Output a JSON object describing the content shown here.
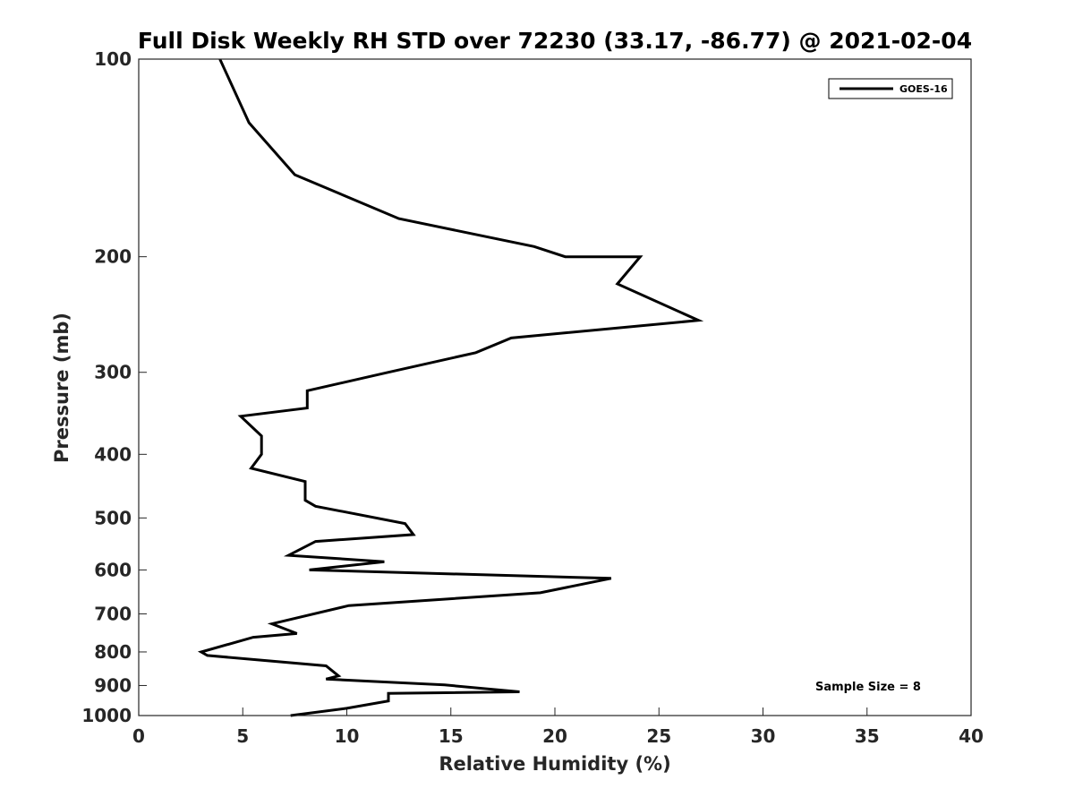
{
  "chart_data": {
    "type": "line",
    "title": "Full Disk Weekly RH STD over 72230 (33.17, -86.77) @ 2021-02-04",
    "xlabel": "Relative Humidity (%)",
    "ylabel": "Pressure (mb)",
    "xlim": [
      0,
      40
    ],
    "ylim": [
      100,
      1000
    ],
    "y_scale": "log",
    "y_reversed": true,
    "xticks": [
      "0",
      "5",
      "10",
      "15",
      "20",
      "25",
      "30",
      "35",
      "40"
    ],
    "xtick_values": [
      0,
      5,
      10,
      15,
      20,
      25,
      30,
      35,
      40
    ],
    "yticks": [
      "100",
      "200",
      "300",
      "400",
      "500",
      "600",
      "700",
      "800",
      "900",
      "1000"
    ],
    "ytick_values": [
      100,
      200,
      300,
      400,
      500,
      600,
      700,
      800,
      900,
      1000
    ],
    "legend": {
      "position": "top-right",
      "entries": [
        "GOES-16"
      ]
    },
    "annotation": "Sample Size = 8",
    "series": [
      {
        "name": "GOES-16",
        "color": "#000000",
        "points": [
          [
            3.9,
            100
          ],
          [
            5.3,
            125
          ],
          [
            7.5,
            150
          ],
          [
            12.5,
            175
          ],
          [
            19.0,
            193
          ],
          [
            20.5,
            200
          ],
          [
            24.1,
            200
          ],
          [
            23.0,
            220
          ],
          [
            26.9,
            250
          ],
          [
            17.9,
            266
          ],
          [
            16.2,
            280
          ],
          [
            12.0,
            300
          ],
          [
            8.1,
            320
          ],
          [
            8.1,
            340
          ],
          [
            4.9,
            350
          ],
          [
            5.9,
            375
          ],
          [
            5.9,
            400
          ],
          [
            5.4,
            420
          ],
          [
            8.0,
            440
          ],
          [
            8.0,
            470
          ],
          [
            8.5,
            480
          ],
          [
            12.8,
            510
          ],
          [
            13.2,
            530
          ],
          [
            8.5,
            543
          ],
          [
            7.2,
            570
          ],
          [
            11.8,
            583
          ],
          [
            8.2,
            600
          ],
          [
            22.7,
            618
          ],
          [
            19.3,
            650
          ],
          [
            10.1,
            680
          ],
          [
            6.4,
            725
          ],
          [
            7.6,
            750
          ],
          [
            5.5,
            760
          ],
          [
            3.0,
            800
          ],
          [
            3.3,
            810
          ],
          [
            9.0,
            840
          ],
          [
            9.6,
            870
          ],
          [
            9.0,
            880
          ],
          [
            14.7,
            898
          ],
          [
            18.3,
            920
          ],
          [
            12.0,
            925
          ],
          [
            12.0,
            950
          ],
          [
            10.0,
            975
          ],
          [
            7.3,
            1000
          ]
        ]
      }
    ]
  }
}
